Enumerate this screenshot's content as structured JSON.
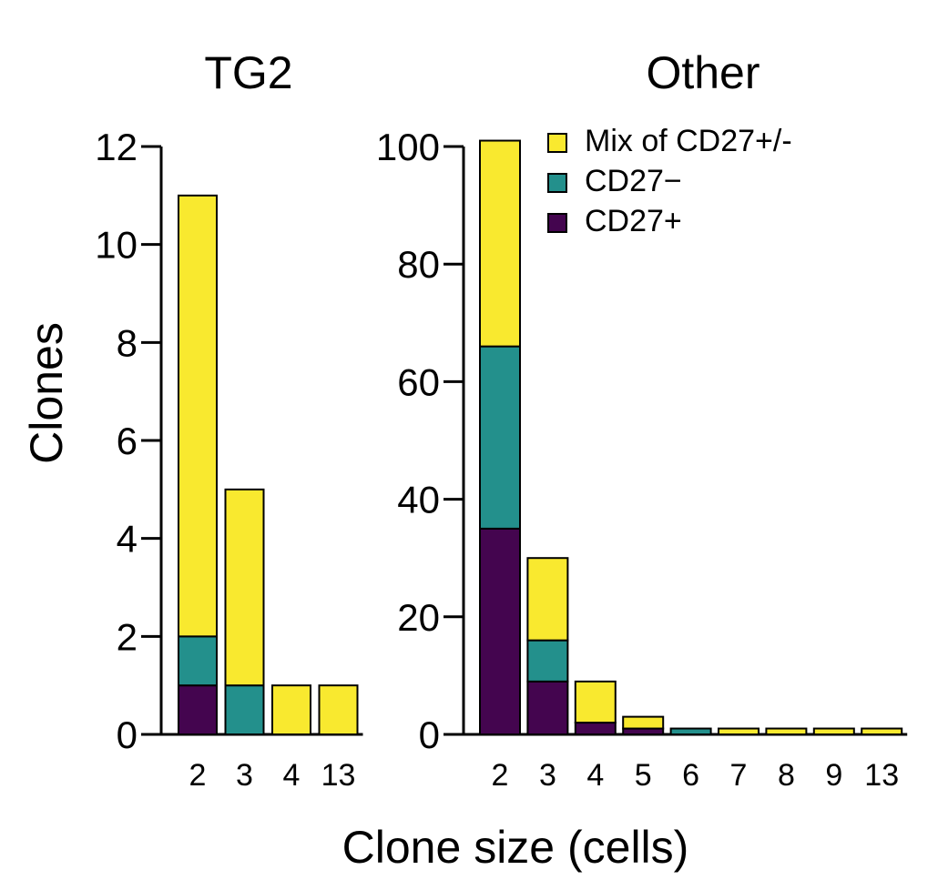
{
  "figure": {
    "ylabel": "Clones",
    "xlabel": "Clone size (cells)"
  },
  "legend": {
    "placement": "top-right",
    "entries": [
      {
        "label": "Mix of CD27+/-",
        "color": "#f9e92f"
      },
      {
        "label": "CD27−",
        "color": "#23908c"
      },
      {
        "label": "CD27+",
        "color": "#44054f"
      }
    ]
  },
  "chart_data": [
    {
      "type": "bar",
      "stacked": true,
      "title": "TG2",
      "xlabel": "Clone size (cells)",
      "ylabel": "Clones",
      "categories": [
        "2",
        "3",
        "4",
        "13"
      ],
      "ylim": [
        0,
        12
      ],
      "yticks": [
        "0",
        "2",
        "4",
        "6",
        "8",
        "10",
        "12"
      ],
      "series": [
        {
          "name": "CD27+",
          "color": "#44054f",
          "values": [
            1,
            0,
            0,
            0
          ]
        },
        {
          "name": "CD27−",
          "color": "#23908c",
          "values": [
            1,
            1,
            0,
            0
          ]
        },
        {
          "name": "Mix of CD27+/-",
          "color": "#f9e92f",
          "values": [
            9,
            4,
            1,
            1
          ]
        }
      ]
    },
    {
      "type": "bar",
      "stacked": true,
      "title": "Other",
      "xlabel": "Clone size (cells)",
      "ylabel": "Clones",
      "categories": [
        "2",
        "3",
        "4",
        "5",
        "6",
        "7",
        "8",
        "9",
        "13"
      ],
      "ylim": [
        0,
        100
      ],
      "yticks": [
        "0",
        "20",
        "40",
        "60",
        "80",
        "100"
      ],
      "series": [
        {
          "name": "CD27+",
          "color": "#44054f",
          "values": [
            35,
            9,
            2,
            1,
            0,
            0,
            0,
            0,
            0
          ]
        },
        {
          "name": "CD27−",
          "color": "#23908c",
          "values": [
            31,
            7,
            0,
            0,
            1,
            0,
            0,
            0,
            0
          ]
        },
        {
          "name": "Mix of CD27+/-",
          "color": "#f9e92f",
          "values": [
            35,
            14,
            7,
            2,
            0,
            1,
            1,
            1,
            1
          ]
        }
      ]
    }
  ]
}
